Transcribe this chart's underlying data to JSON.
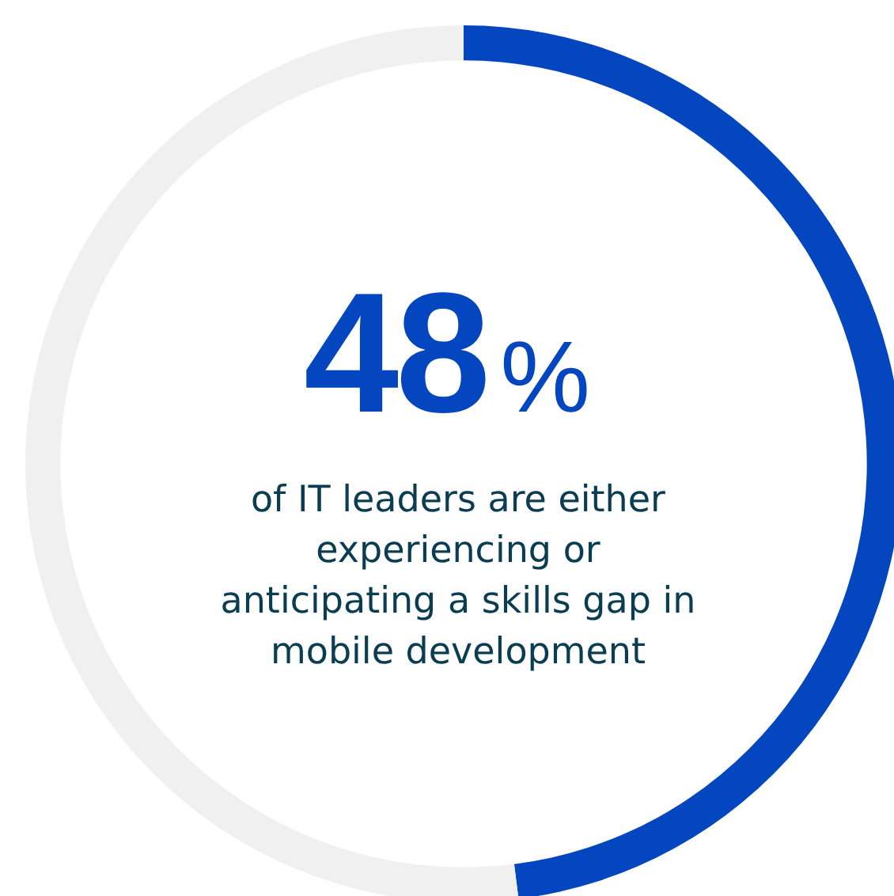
{
  "chart_data": {
    "type": "donut",
    "categories": [
      null,
      null
    ],
    "values": [
      48,
      52
    ],
    "colors": [
      "#0346c0",
      "#f0f0f0"
    ],
    "value_labels": [
      "48%",
      null
    ],
    "annotations": [
      "of IT leaders  are either experiencing or anticipating a skills gap in mobile development"
    ],
    "legend": false
  }
}
